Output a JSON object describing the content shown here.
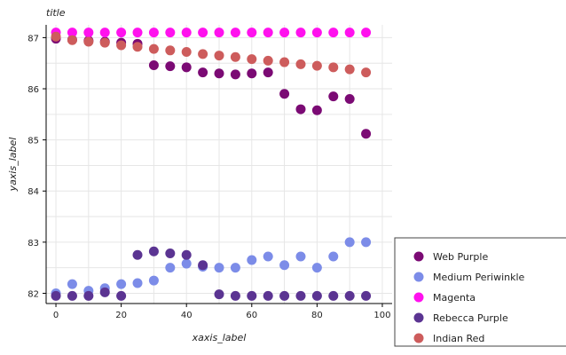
{
  "chart_data": {
    "type": "scatter",
    "title": "title",
    "xlabel": "xaxis_label",
    "ylabel": "yaxis_label",
    "xlim": [
      -3,
      103
    ],
    "ylim": [
      81.8,
      87.25
    ],
    "xticks": [
      0,
      20,
      40,
      60,
      80,
      100
    ],
    "xtick_labels": [
      "0",
      "20",
      "40",
      "60",
      "80",
      "100"
    ],
    "yticks": [
      82,
      83,
      84,
      85,
      86,
      87
    ],
    "ytick_labels": [
      "82",
      "83",
      "84",
      "85",
      "86",
      "87"
    ],
    "grid": true,
    "legend_position": "right",
    "series": [
      {
        "name": "Web Purple",
        "color": "#7B0A74",
        "x": [
          0,
          5,
          10,
          15,
          20,
          25,
          30,
          35,
          40,
          45,
          50,
          55,
          60,
          65,
          70,
          75,
          80,
          85,
          90,
          95
        ],
        "y": [
          86.98,
          86.96,
          86.94,
          86.92,
          86.9,
          86.88,
          86.46,
          86.44,
          86.42,
          86.32,
          86.3,
          86.28,
          86.3,
          86.32,
          85.9,
          85.6,
          85.58,
          85.85,
          85.8,
          85.12
        ]
      },
      {
        "name": "Medium Periwinkle",
        "color": "#7C8CE8",
        "x": [
          0,
          5,
          10,
          15,
          20,
          25,
          30,
          35,
          40,
          45,
          50,
          55,
          60,
          65,
          70,
          75,
          80,
          85,
          90,
          95
        ],
        "y": [
          82.0,
          82.18,
          82.05,
          82.1,
          82.18,
          82.2,
          82.25,
          82.5,
          82.58,
          82.52,
          82.5,
          82.5,
          82.65,
          82.72,
          82.55,
          82.72,
          82.5,
          82.72,
          83.0,
          83.0
        ]
      },
      {
        "name": "Magenta",
        "color": "#FF11EE",
        "x": [
          0,
          5,
          10,
          15,
          20,
          25,
          30,
          35,
          40,
          45,
          50,
          55,
          60,
          65,
          70,
          75,
          80,
          85,
          90,
          95
        ],
        "y": [
          87.1,
          87.1,
          87.1,
          87.1,
          87.1,
          87.1,
          87.1,
          87.1,
          87.1,
          87.1,
          87.1,
          87.1,
          87.1,
          87.1,
          87.1,
          87.1,
          87.1,
          87.1,
          87.1,
          87.1
        ]
      },
      {
        "name": "Rebecca Purple",
        "color": "#5B3492",
        "x": [
          0,
          5,
          10,
          15,
          20,
          25,
          30,
          35,
          40,
          45,
          50,
          55,
          60,
          65,
          70,
          75,
          80,
          85,
          90,
          95
        ],
        "y": [
          81.95,
          81.95,
          81.95,
          82.02,
          81.95,
          82.75,
          82.82,
          82.78,
          82.75,
          82.55,
          81.98,
          81.95,
          81.95,
          81.95,
          81.95,
          81.95,
          81.95,
          81.95,
          81.95,
          81.95
        ]
      },
      {
        "name": "Indian Red",
        "color": "#CD5C5C",
        "x": [
          0,
          5,
          10,
          15,
          20,
          25,
          30,
          35,
          40,
          45,
          50,
          55,
          60,
          65,
          70,
          75,
          80,
          85,
          90,
          95
        ],
        "y": [
          87.02,
          86.95,
          86.92,
          86.9,
          86.85,
          86.82,
          86.78,
          86.75,
          86.72,
          86.68,
          86.65,
          86.62,
          86.58,
          86.55,
          86.52,
          86.48,
          86.45,
          86.42,
          86.38,
          86.32
        ]
      }
    ]
  }
}
